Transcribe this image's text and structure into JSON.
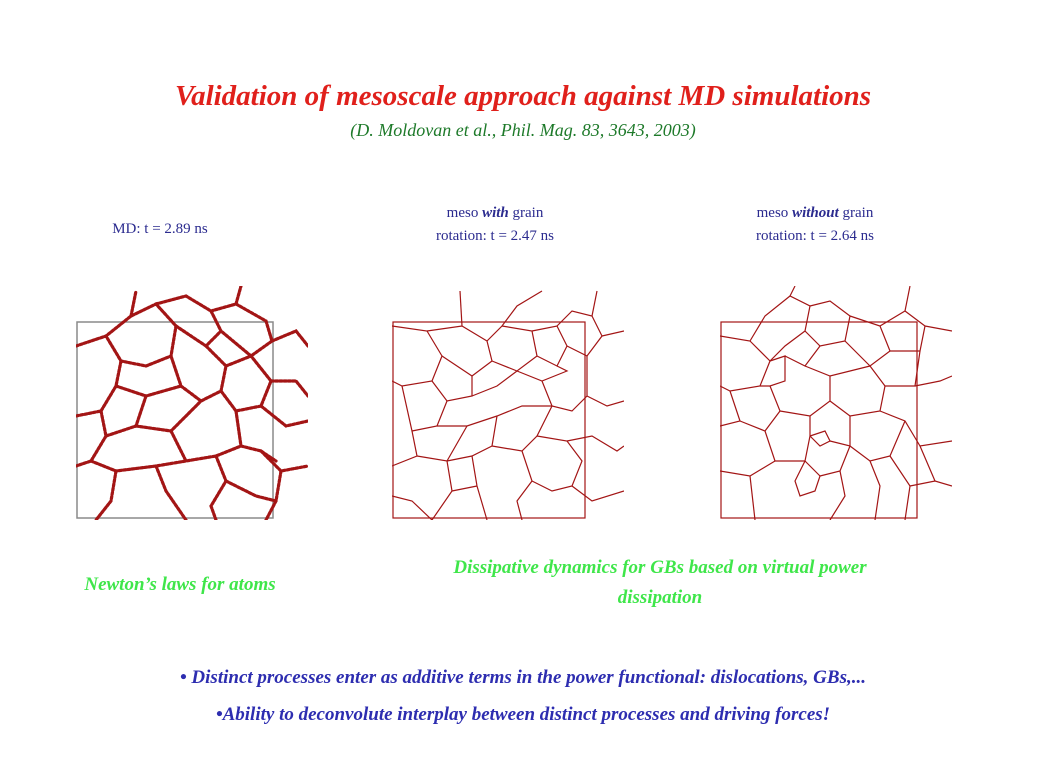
{
  "title": "Validation of mesoscale approach against MD simulations",
  "citation": "(D. Moldovan et al., Phil. Mag. 83, 3643, 2003)",
  "panels": {
    "md": {
      "caption": "MD: t = 2.89 ns"
    },
    "meso_with": {
      "line1_pre": "meso ",
      "line1_em": "with",
      "line1_post": " grain",
      "line2": "rotation: t = 2.47 ns"
    },
    "meso_without": {
      "line1_pre": "meso ",
      "line1_em": "without",
      "line1_post": " grain",
      "line2": "rotation: t = 2.64 ns"
    }
  },
  "labels": {
    "newton": "Newton’s laws for atoms",
    "dissipative": "Dissipative dynamics for GBs based on virtual power dissipation"
  },
  "bullets": [
    "• Distinct processes enter as additive terms in the power functional: dislocations, GBs,...",
    "•Ability to deconvolute interplay between distinct processes and driving forces!"
  ],
  "colors": {
    "title": "#e0201b",
    "citation": "#1e7a2a",
    "caption": "#2b2b8f",
    "green_label": "#3fe64a",
    "bullet": "#2d2db0",
    "grain_boundary": "#a31515"
  }
}
